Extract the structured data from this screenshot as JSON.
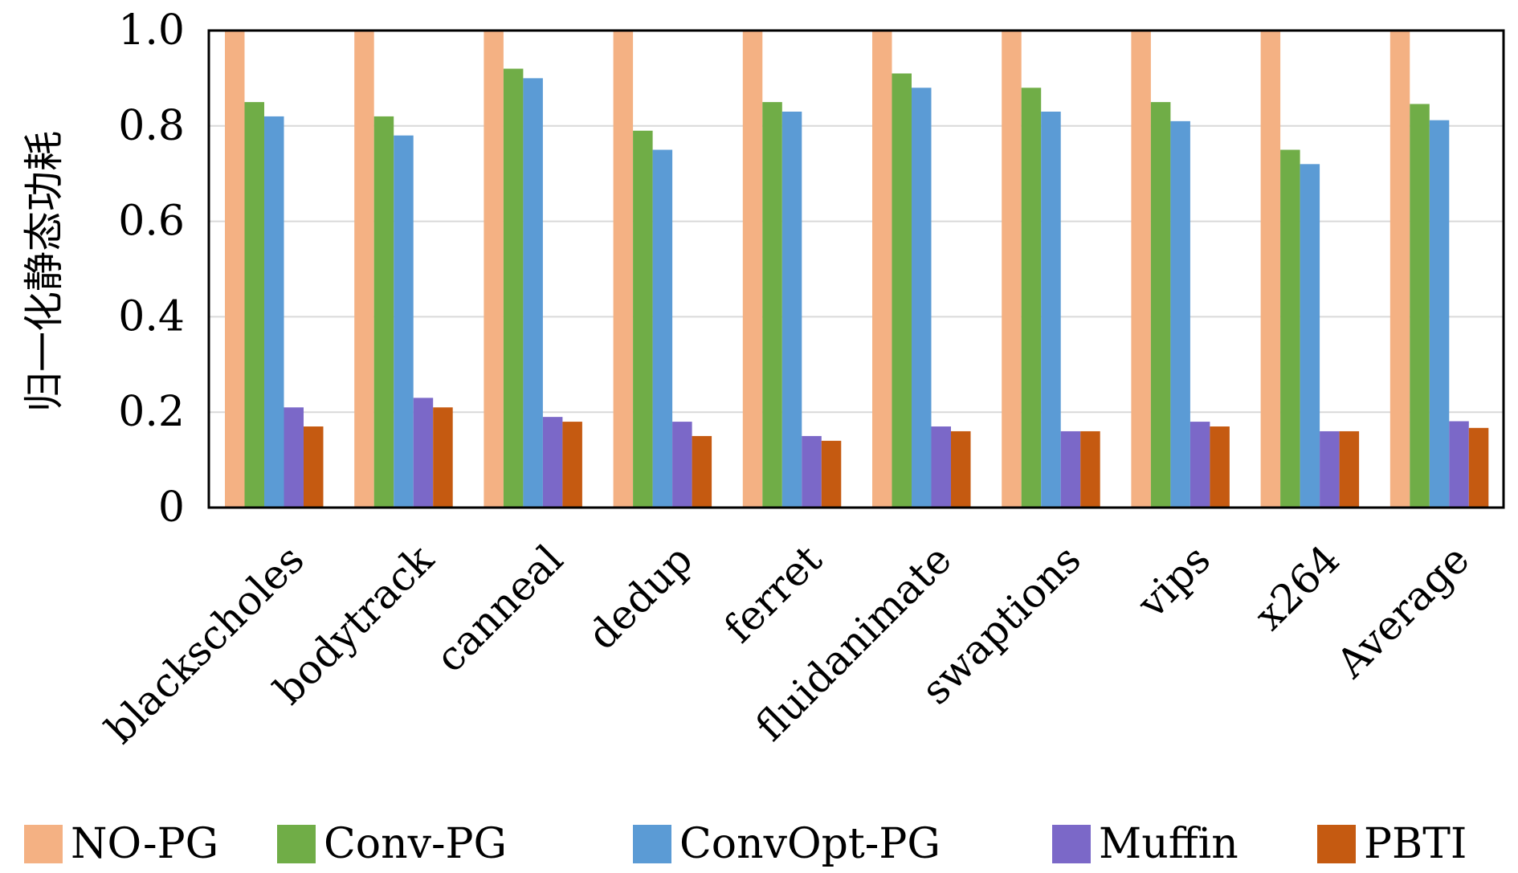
{
  "chart_data": {
    "type": "bar",
    "ylabel": "归一化静态功耗",
    "xlabel": "",
    "ylim": [
      0,
      1.0
    ],
    "yticks": [
      "0",
      "0.2",
      "0.4",
      "0.6",
      "0.8",
      "1.0"
    ],
    "grid": true,
    "legend_position": "bottom",
    "categories": [
      "blackscholes",
      "bodytrack",
      "canneal",
      "dedup",
      "ferret",
      "fluidanimate",
      "swaptions",
      "vips",
      "x264",
      "Average"
    ],
    "series": [
      {
        "name": "NO-PG",
        "color": "#F4B183",
        "values": [
          1.0,
          1.0,
          1.0,
          1.0,
          1.0,
          1.0,
          1.0,
          1.0,
          1.0,
          1.0
        ]
      },
      {
        "name": "Conv-PG",
        "color": "#70AD47",
        "values": [
          0.85,
          0.82,
          0.92,
          0.79,
          0.85,
          0.91,
          0.88,
          0.85,
          0.75,
          0.846
        ]
      },
      {
        "name": "ConvOpt-PG",
        "color": "#5B9BD5",
        "values": [
          0.82,
          0.78,
          0.9,
          0.75,
          0.83,
          0.88,
          0.83,
          0.81,
          0.72,
          0.812
        ]
      },
      {
        "name": "Muffin",
        "color": "#7B68C8",
        "values": [
          0.21,
          0.23,
          0.19,
          0.18,
          0.15,
          0.17,
          0.16,
          0.18,
          0.16,
          0.181
        ]
      },
      {
        "name": "PBTI",
        "color": "#C55A11",
        "values": [
          0.17,
          0.21,
          0.18,
          0.15,
          0.14,
          0.16,
          0.16,
          0.17,
          0.16,
          0.167
        ]
      }
    ]
  }
}
